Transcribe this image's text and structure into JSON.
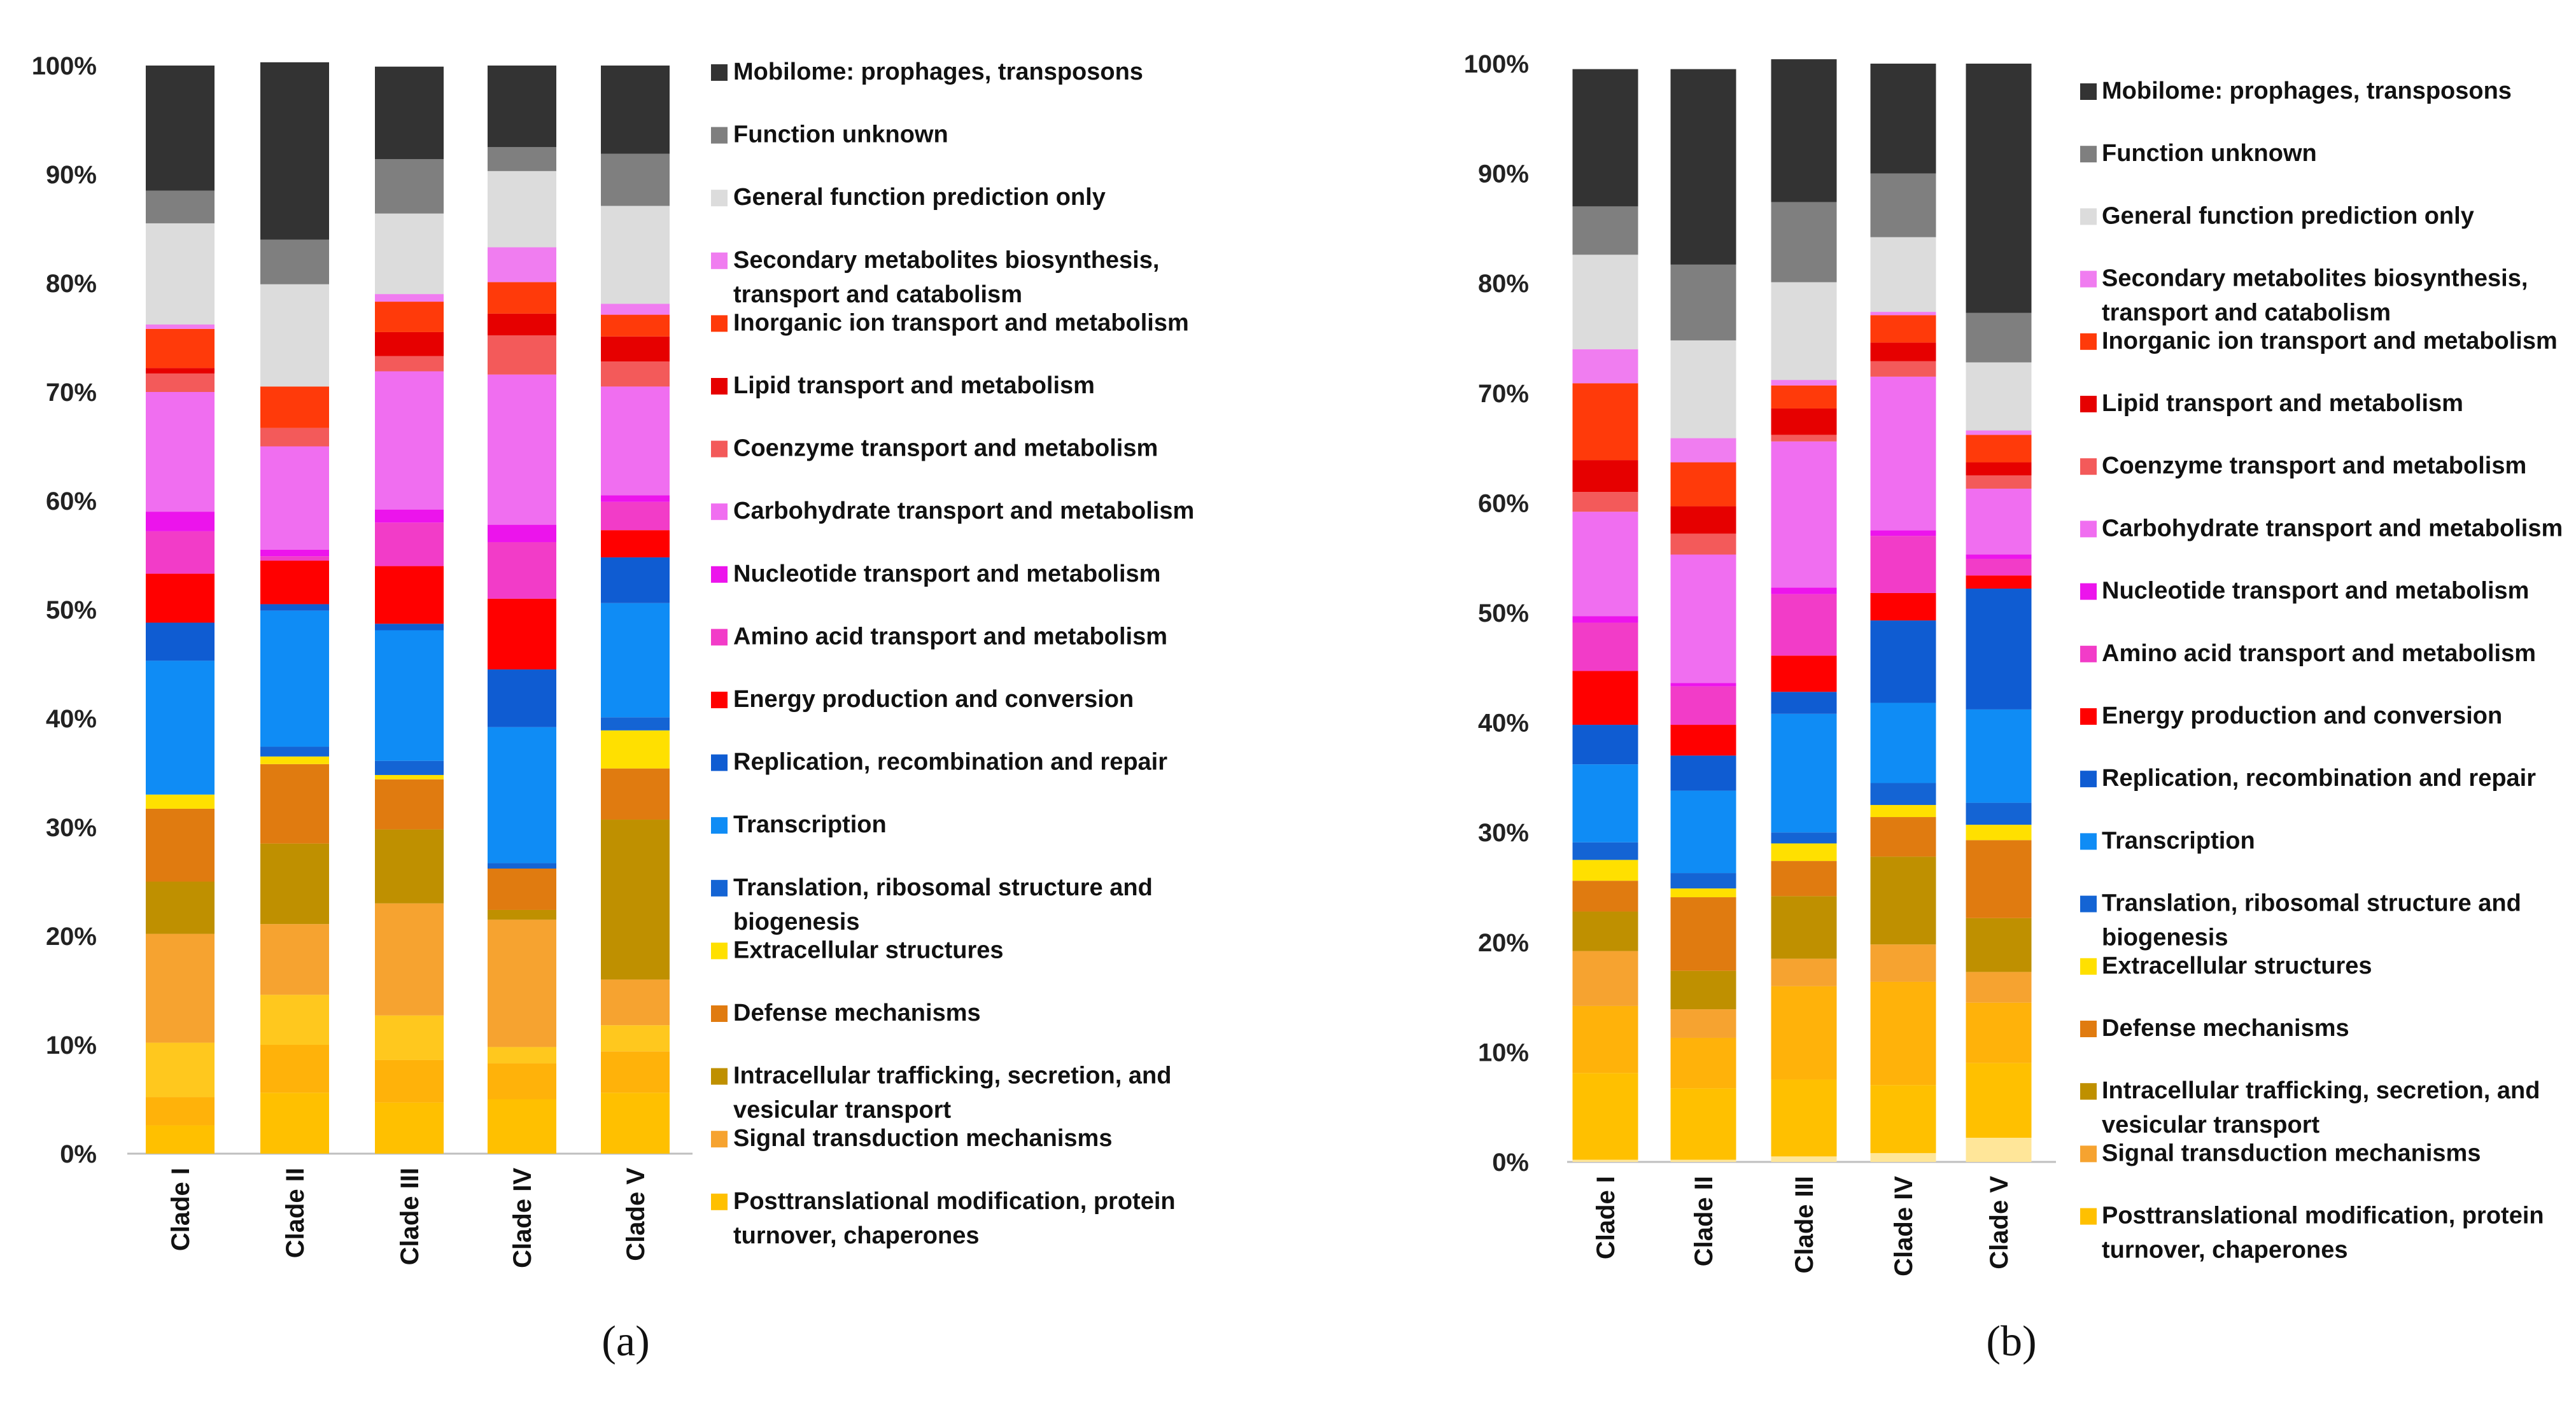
{
  "chart_data": [
    {
      "type": "stacked-bar-100",
      "panel_label": "(a)",
      "categories": [
        "Clade I",
        "Clade II",
        "Clade III",
        "Clade IV",
        "Clade V"
      ],
      "y_ticks": [
        "0%",
        "10%",
        "20%",
        "30%",
        "40%",
        "50%",
        "60%",
        "70%",
        "80%",
        "90%",
        "100%"
      ],
      "ylim": [
        0,
        100
      ],
      "segments": [
        {
          "name": "Light yellow (unlabeled)",
          "color": "#FFE699",
          "values": [
            0,
            0,
            0,
            0,
            0
          ]
        },
        {
          "name": "Posttranslational modification, protein turnover, chaperones",
          "color": "#FFC000",
          "values": [
            2.6,
            5.6,
            4.7,
            5.0,
            5.6
          ]
        },
        {
          "name": "Orange (unlabeled)",
          "color": "#FFB20A",
          "values": [
            2.6,
            4.4,
            3.9,
            3.3,
            3.8
          ]
        },
        {
          "name": "Yellow-orange (unlabeled)",
          "color": "#FFC81E",
          "values": [
            5.0,
            4.6,
            4.1,
            1.5,
            2.4
          ]
        },
        {
          "name": "Signal transduction mechanisms",
          "color": "#F6A330",
          "values": [
            10.0,
            6.5,
            10.3,
            11.7,
            4.2
          ]
        },
        {
          "name": "Intracellular trafficking, secretion, and vesicular transport",
          "color": "#BF9000",
          "values": [
            4.8,
            7.4,
            6.8,
            0.9,
            14.7
          ]
        },
        {
          "name": "Defense mechanisms",
          "color": "#E07B10",
          "values": [
            6.7,
            7.3,
            4.6,
            3.8,
            4.7
          ]
        },
        {
          "name": "Extracellular structures",
          "color": "#FFE000",
          "values": [
            1.3,
            0.7,
            0.4,
            0,
            3.5
          ]
        },
        {
          "name": "Translation, ribosomal structure and biogenesis",
          "color": "#1464D4",
          "values": [
            0,
            0.9,
            1.3,
            0.5,
            1.2
          ]
        },
        {
          "name": "Transcription",
          "color": "#0F8CF5",
          "values": [
            12.3,
            12.5,
            12.0,
            12.5,
            10.5
          ]
        },
        {
          "name": "Replication, recombination and repair",
          "color": "#0F5CD2",
          "values": [
            3.5,
            0.6,
            0.6,
            5.3,
            4.2
          ]
        },
        {
          "name": "Energy production and conversion",
          "color": "#FF0000",
          "values": [
            4.5,
            4.0,
            5.3,
            6.5,
            2.5
          ]
        },
        {
          "name": "Amino acid transport and metabolism",
          "color": "#F23CC8",
          "values": [
            3.9,
            0.4,
            4.0,
            5.2,
            2.6
          ]
        },
        {
          "name": "Nucleotide transport and metabolism",
          "color": "#EC14EC",
          "values": [
            1.8,
            0.6,
            1.2,
            1.6,
            0.6
          ]
        },
        {
          "name": "Carbohydrate transport and metabolism",
          "color": "#F06EF0",
          "values": [
            11.0,
            9.5,
            12.7,
            13.8,
            10.0
          ]
        },
        {
          "name": "Coenzyme  transport and metabolism",
          "color": "#F35A5A",
          "values": [
            1.7,
            1.7,
            1.4,
            3.6,
            2.3
          ]
        },
        {
          "name": "Lipid transport and metabolism",
          "color": "#E60000",
          "values": [
            0.5,
            0,
            2.2,
            2.0,
            2.3
          ]
        },
        {
          "name": "Inorganic ion transport and metabolism",
          "color": "#FF3A0A",
          "values": [
            3.6,
            3.8,
            2.8,
            2.9,
            2.0
          ]
        },
        {
          "name": "Secondary metabolites biosynthesis, transport and catabolism",
          "color": "#F07DF0",
          "values": [
            0.4,
            0,
            0.7,
            3.2,
            1.0
          ]
        },
        {
          "name": "General function prediction only",
          "color": "#DCDCDC",
          "values": [
            9.3,
            9.4,
            7.4,
            7.0,
            9.0
          ]
        },
        {
          "name": "Function unknown",
          "color": "#7F7F7F",
          "values": [
            3.0,
            4.1,
            5.0,
            2.2,
            4.8
          ]
        },
        {
          "name": "Mobilome: prophages, transposons",
          "color": "#333333",
          "values": [
            11.5,
            16.3,
            8.5,
            7.5,
            8.1
          ]
        }
      ]
    },
    {
      "type": "stacked-bar-100",
      "panel_label": "(b)",
      "categories": [
        "Clade I",
        "Clade II",
        "Clade III",
        "Clade IV",
        "Clade V"
      ],
      "y_ticks": [
        "0%",
        "10%",
        "20%",
        "30%",
        "40%",
        "50%",
        "60%",
        "70%",
        "80%",
        "90%",
        "100%"
      ],
      "ylim": [
        0,
        100
      ],
      "segments": [
        {
          "name": "Light yellow (unlabeled)",
          "color": "#FFE699",
          "values": [
            0.2,
            0.2,
            0.5,
            0.8,
            2.2
          ]
        },
        {
          "name": "Posttranslational modification, protein turnover, chaperones",
          "color": "#FFC000",
          "values": [
            7.9,
            6.5,
            7.0,
            6.2,
            6.8
          ]
        },
        {
          "name": "Orange (unlabeled)",
          "color": "#FFB20A",
          "values": [
            6.1,
            4.6,
            8.5,
            9.4,
            5.5
          ]
        },
        {
          "name": "Yellow-orange (unlabeled)",
          "color": "#FFC81E",
          "values": [
            0,
            0,
            0,
            0,
            0
          ]
        },
        {
          "name": "Signal transduction mechanisms",
          "color": "#F6A330",
          "values": [
            5.0,
            2.6,
            2.5,
            3.4,
            2.8
          ]
        },
        {
          "name": "Intracellular trafficking, secretion, and vesicular transport",
          "color": "#BF9000",
          "values": [
            3.6,
            3.5,
            5.7,
            8.0,
            4.9
          ]
        },
        {
          "name": "Defense mechanisms",
          "color": "#E07B10",
          "values": [
            2.8,
            6.7,
            3.2,
            3.6,
            7.1
          ]
        },
        {
          "name": "Extracellular structures",
          "color": "#FFE000",
          "values": [
            1.9,
            0.8,
            1.6,
            1.1,
            1.4
          ]
        },
        {
          "name": "Translation, ribosomal structure and biogenesis",
          "color": "#1464D4",
          "values": [
            1.6,
            1.4,
            1.0,
            2.0,
            2.0
          ]
        },
        {
          "name": "Transcription",
          "color": "#0F8CF5",
          "values": [
            7.1,
            7.5,
            10.8,
            7.3,
            8.5
          ]
        },
        {
          "name": "Replication, recombination and repair",
          "color": "#0F5CD2",
          "values": [
            3.6,
            3.2,
            2.0,
            7.5,
            11.0
          ]
        },
        {
          "name": "Energy production and conversion",
          "color": "#FF0000",
          "values": [
            4.9,
            2.8,
            3.3,
            2.5,
            1.2
          ]
        },
        {
          "name": "Amino acid transport and metabolism",
          "color": "#F23CC8",
          "values": [
            4.4,
            3.5,
            5.6,
            5.2,
            1.5
          ]
        },
        {
          "name": "Nucleotide transport and metabolism",
          "color": "#EC14EC",
          "values": [
            0.6,
            0.3,
            0.6,
            0.5,
            0.4
          ]
        },
        {
          "name": "Carbohydrate transport and metabolism",
          "color": "#F06EF0",
          "values": [
            9.5,
            11.7,
            13.3,
            14.0,
            6.0
          ]
        },
        {
          "name": "Coenzyme  transport and metabolism",
          "color": "#F35A5A",
          "values": [
            1.8,
            1.9,
            0.6,
            1.4,
            1.2
          ]
        },
        {
          "name": "Lipid transport and metabolism",
          "color": "#E60000",
          "values": [
            2.9,
            2.5,
            2.4,
            1.7,
            1.2
          ]
        },
        {
          "name": "Inorganic ion transport and metabolism",
          "color": "#FF3A0A",
          "values": [
            7.0,
            4.0,
            2.1,
            2.5,
            2.5
          ]
        },
        {
          "name": "Secondary metabolites biosynthesis, transport and catabolism",
          "color": "#F07DF0",
          "values": [
            3.1,
            2.2,
            0.5,
            0.3,
            0.4
          ]
        },
        {
          "name": "General function prediction only",
          "color": "#DCDCDC",
          "values": [
            8.6,
            8.9,
            8.9,
            6.8,
            6.2
          ]
        },
        {
          "name": "Function unknown",
          "color": "#7F7F7F",
          "values": [
            4.4,
            6.9,
            7.3,
            5.8,
            4.5
          ]
        },
        {
          "name": "Mobilome: prophages, transposons",
          "color": "#333333",
          "values": [
            12.5,
            17.8,
            13.0,
            10.0,
            22.7
          ]
        }
      ]
    }
  ],
  "legend": {
    "entries": [
      {
        "lines": [
          "Mobilome: prophages, transposons"
        ],
        "color": "#333333"
      },
      {
        "lines": [
          "Function unknown"
        ],
        "color": "#7F7F7F"
      },
      {
        "lines": [
          "General function prediction only"
        ],
        "color": "#DCDCDC"
      },
      {
        "lines": [
          "Secondary metabolites biosynthesis,",
          "transport and catabolism"
        ],
        "color": "#F07DF0"
      },
      {
        "lines": [
          "Inorganic ion transport and metabolism"
        ],
        "color": "#FF3A0A"
      },
      {
        "lines": [
          "Lipid transport and metabolism"
        ],
        "color": "#E60000"
      },
      {
        "lines": [
          "Coenzyme  transport and metabolism"
        ],
        "color": "#F35A5A"
      },
      {
        "lines": [
          "Carbohydrate transport and metabolism"
        ],
        "color": "#F06EF0"
      },
      {
        "lines": [
          "Nucleotide transport and metabolism"
        ],
        "color": "#EC14EC"
      },
      {
        "lines": [
          "Amino acid transport and metabolism"
        ],
        "color": "#F23CC8"
      },
      {
        "lines": [
          "Energy production and conversion"
        ],
        "color": "#FF0000"
      },
      {
        "lines": [
          "Replication, recombination and repair"
        ],
        "color": "#0F5CD2"
      },
      {
        "lines": [
          "Transcription"
        ],
        "color": "#0F8CF5"
      },
      {
        "lines": [
          "Translation, ribosomal structure and",
          "biogenesis"
        ],
        "color": "#1464D4"
      },
      {
        "lines": [
          "Extracellular structures"
        ],
        "color": "#FFE000"
      },
      {
        "lines": [
          "Defense mechanisms"
        ],
        "color": "#E07B10"
      },
      {
        "lines": [
          "Intracellular trafficking, secretion, and",
          "vesicular transport"
        ],
        "color": "#BF9000"
      },
      {
        "lines": [
          "Signal transduction mechanisms"
        ],
        "color": "#F6A330"
      },
      {
        "lines": [
          "Posttranslational modification, protein",
          "turnover, chaperones"
        ],
        "color": "#FFC000"
      }
    ]
  }
}
